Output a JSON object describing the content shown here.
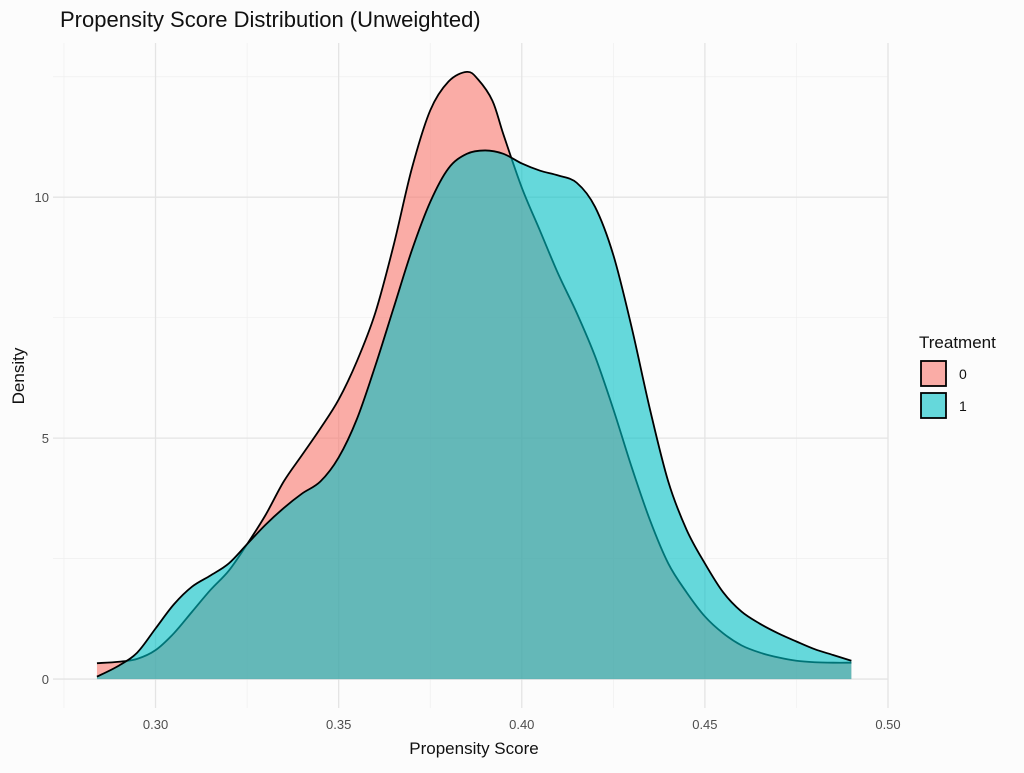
{
  "chart_data": {
    "type": "area",
    "title": "Propensity Score Distribution (Unweighted)",
    "xlabel": "Propensity Score",
    "ylabel": "Density",
    "xlim": [
      0.272,
      0.5
    ],
    "ylim": [
      -0.6,
      13.2
    ],
    "xticks": [
      0.3,
      0.35,
      0.4,
      0.45,
      0.5
    ],
    "xtick_labels": [
      "0.30",
      "0.35",
      "0.40",
      "0.45",
      "0.50"
    ],
    "yticks": [
      0,
      5,
      10
    ],
    "ytick_labels": [
      "0",
      "5",
      "10"
    ],
    "grid": true,
    "legend": {
      "title": "Treatment",
      "position": "right"
    },
    "series": [
      {
        "name": "0",
        "color": "#F8766D",
        "x": [
          0.284,
          0.29,
          0.295,
          0.3,
          0.305,
          0.31,
          0.315,
          0.32,
          0.325,
          0.33,
          0.335,
          0.34,
          0.345,
          0.35,
          0.355,
          0.36,
          0.365,
          0.37,
          0.375,
          0.38,
          0.385,
          0.388,
          0.392,
          0.395,
          0.4,
          0.405,
          0.41,
          0.415,
          0.42,
          0.425,
          0.43,
          0.435,
          0.44,
          0.445,
          0.45,
          0.455,
          0.46,
          0.465,
          0.47,
          0.475,
          0.48,
          0.485,
          0.49
        ],
        "y": [
          0.33,
          0.36,
          0.42,
          0.6,
          0.95,
          1.4,
          1.85,
          2.25,
          2.8,
          3.4,
          4.1,
          4.65,
          5.2,
          5.8,
          6.6,
          7.6,
          9.0,
          10.6,
          11.8,
          12.4,
          12.6,
          12.45,
          12.0,
          11.3,
          10.2,
          9.3,
          8.4,
          7.6,
          6.7,
          5.6,
          4.4,
          3.3,
          2.4,
          1.8,
          1.3,
          0.95,
          0.7,
          0.55,
          0.45,
          0.38,
          0.35,
          0.34,
          0.34
        ]
      },
      {
        "name": "1",
        "color": "#00BFC4",
        "x": [
          0.284,
          0.29,
          0.295,
          0.3,
          0.305,
          0.31,
          0.315,
          0.32,
          0.325,
          0.33,
          0.335,
          0.34,
          0.345,
          0.35,
          0.355,
          0.36,
          0.365,
          0.37,
          0.375,
          0.38,
          0.385,
          0.39,
          0.395,
          0.4,
          0.405,
          0.41,
          0.415,
          0.42,
          0.425,
          0.43,
          0.435,
          0.44,
          0.445,
          0.45,
          0.455,
          0.46,
          0.465,
          0.47,
          0.475,
          0.48,
          0.485,
          0.49
        ],
        "y": [
          0.05,
          0.28,
          0.55,
          1.05,
          1.55,
          1.92,
          2.15,
          2.4,
          2.8,
          3.2,
          3.55,
          3.85,
          4.1,
          4.6,
          5.4,
          6.5,
          7.7,
          8.9,
          9.9,
          10.6,
          10.9,
          10.97,
          10.9,
          10.7,
          10.55,
          10.45,
          10.3,
          9.8,
          8.8,
          7.3,
          5.6,
          4.1,
          3.1,
          2.4,
          1.8,
          1.4,
          1.15,
          0.95,
          0.78,
          0.62,
          0.5,
          0.38
        ]
      }
    ]
  }
}
